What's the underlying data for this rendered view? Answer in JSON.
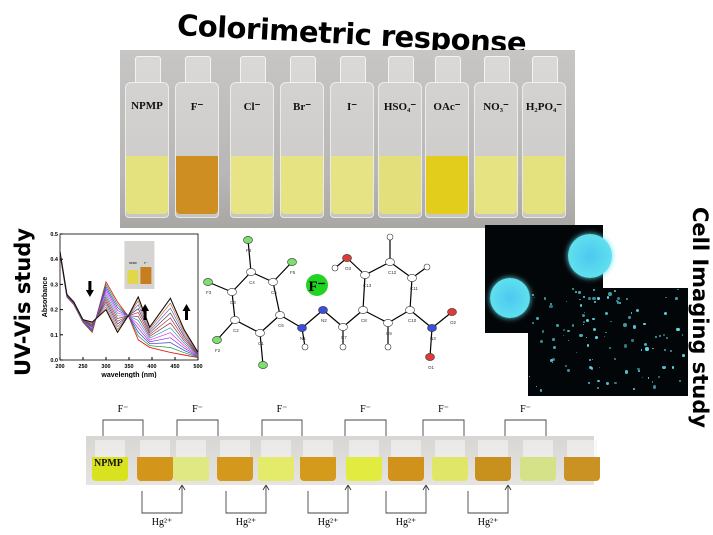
{
  "title": "Colorimetric response",
  "colorimetric": {
    "vials": [
      {
        "label": "NPMP",
        "color": "#e4e27e"
      },
      {
        "label": "F⁻",
        "color": "#cf8e22"
      },
      {
        "label": "Cl⁻",
        "color": "#e6e485"
      },
      {
        "label": "Br⁻",
        "color": "#e6e382"
      },
      {
        "label": "I⁻",
        "color": "#e5e384"
      },
      {
        "label": "HSO₄⁻",
        "color": "#e3e07c"
      },
      {
        "label": "OAc⁻",
        "color": "#e2cc1c"
      },
      {
        "label": "NO₃⁻",
        "color": "#e5e382"
      },
      {
        "label": "H₂PO₄⁻",
        "color": "#e3e27f"
      }
    ]
  },
  "uv_vis": {
    "side_label": "UV-Vis study",
    "inset_labels": [
      "NPMP",
      "F⁻"
    ],
    "arrows": [
      "down",
      "up",
      "up"
    ]
  },
  "chart_data": {
    "type": "line",
    "xlabel": "wavelength (nm)",
    "ylabel": "Absorbance",
    "xlim": [
      200,
      500
    ],
    "ylim": [
      0.0,
      0.5
    ],
    "xticks": [
      "200",
      "250",
      "300",
      "350",
      "400",
      "450",
      "500"
    ],
    "yticks": [
      "0.0",
      "0.1",
      "0.2",
      "0.3",
      "0.4",
      "0.5"
    ],
    "x": [
      200,
      215,
      230,
      250,
      270,
      300,
      325,
      350,
      370,
      395,
      440,
      470,
      500
    ],
    "series": [
      {
        "color": "#e02020",
        "values": [
          0.42,
          0.25,
          0.22,
          0.15,
          0.11,
          0.31,
          0.23,
          0.17,
          0.08,
          0.05,
          0.03,
          0.02,
          0.01
        ]
      },
      {
        "color": "#111111",
        "values": [
          0.43,
          0.26,
          0.23,
          0.16,
          0.15,
          0.2,
          0.11,
          0.18,
          0.25,
          0.13,
          0.245,
          0.12,
          0.03
        ]
      }
    ],
    "intermediate_colors": [
      "#1f9e3a",
      "#2a3fd0",
      "#8a2be2",
      "#e040e0",
      "#2a9ec8",
      "#7a4a20",
      "#c02060",
      "#404040",
      "#6a6ad0",
      "#d06a20"
    ]
  },
  "structure": {
    "anion_label": "F⁻",
    "atoms": [
      "F1",
      "F2",
      "F3",
      "F4",
      "F5",
      "C1",
      "C2",
      "C3",
      "C4",
      "C5",
      "C6",
      "N1",
      "N2",
      "C7",
      "C8",
      "C9",
      "C10",
      "C11",
      "C12",
      "C13",
      "O3",
      "N3",
      "O1",
      "O2"
    ]
  },
  "cell_imaging": {
    "side_label": "Cell Imaging study",
    "glow_color": "#5fe0ee"
  },
  "reversibility": {
    "vial_label": "NPMP",
    "forward_label": "F⁻",
    "reverse_label": "Hg²⁺",
    "vial_colors": [
      "#d8e21e",
      "#d4961a",
      "#e0e884",
      "#d4981c",
      "#e4ea6a",
      "#d49a1c",
      "#e2ec40",
      "#d0921a",
      "#dfe668",
      "#c8901c",
      "#d6e288",
      "#c99222"
    ]
  }
}
